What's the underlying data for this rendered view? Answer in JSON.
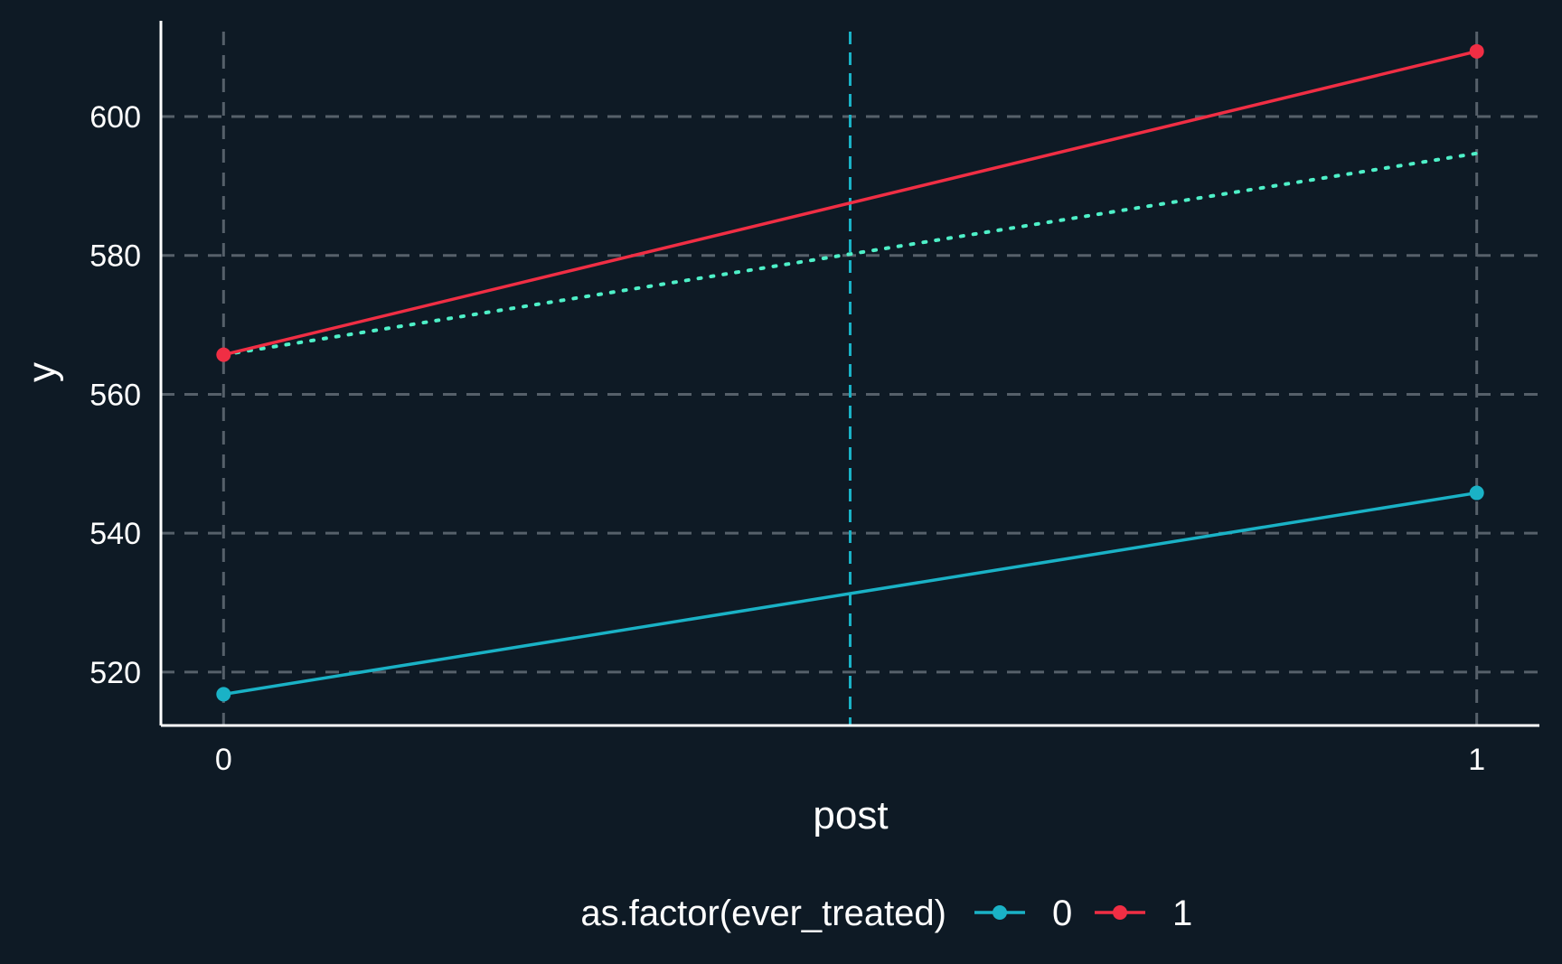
{
  "chart_data": {
    "type": "line",
    "title": "",
    "xlabel": "post",
    "ylabel": "y",
    "x": [
      0,
      1
    ],
    "xticks": [
      "0",
      "1"
    ],
    "xlim": [
      -0.05,
      1.05
    ],
    "ylim": [
      512.3,
      613.8
    ],
    "yticks": [
      520,
      540,
      560,
      580,
      600
    ],
    "grid": true,
    "legend": {
      "title": "as.factor(ever_treated)",
      "position": "bottom"
    },
    "series": [
      {
        "name": "0",
        "values": [
          516.8,
          545.8
        ],
        "color": "#1ab2c6",
        "style": "solid",
        "markers": true
      },
      {
        "name": "1",
        "values": [
          565.7,
          609.4
        ],
        "color": "#f02e44",
        "style": "solid",
        "markers": true
      }
    ],
    "counterfactual": {
      "values": [
        565.7,
        594.7
      ],
      "color": "#4ef0c8",
      "style": "dotted"
    },
    "vline": {
      "x": 0.5,
      "color": "#1ab2c6",
      "style": "dashed"
    },
    "colors": {
      "background": "#0e1a25",
      "grid": "#56606a",
      "axis": "#ffffff",
      "text": "#ffffff"
    }
  }
}
